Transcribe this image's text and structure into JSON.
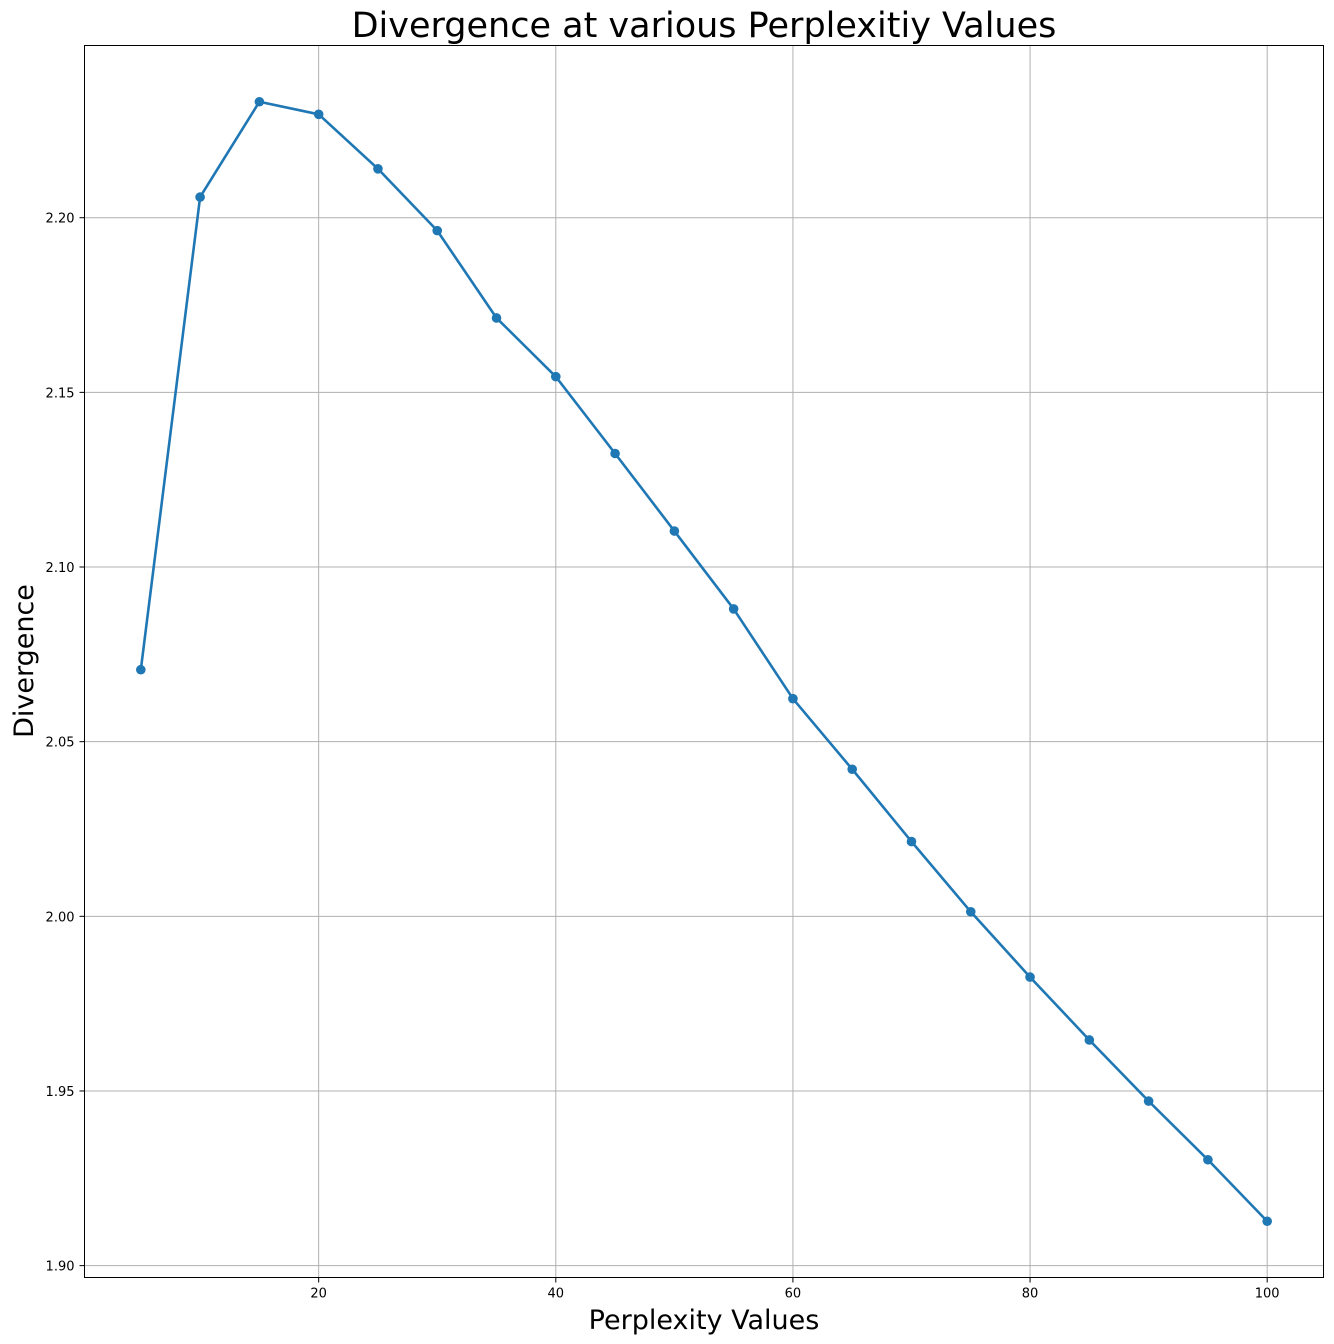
{
  "chart_data": {
    "type": "line",
    "title": "Divergence at various Perplexitiy Values",
    "xlabel": "Perplexity Values",
    "ylabel": "Divergence",
    "x": [
      5,
      10,
      15,
      20,
      25,
      30,
      35,
      40,
      45,
      50,
      55,
      60,
      65,
      70,
      75,
      80,
      85,
      90,
      95,
      100
    ],
    "series": [
      {
        "values": [
          2.0706,
          2.2059,
          2.2332,
          2.2296,
          2.214,
          2.1963,
          2.1713,
          2.1545,
          2.1325,
          2.1103,
          2.088,
          2.0623,
          2.0421,
          2.0214,
          2.0013,
          1.9826,
          1.9646,
          1.9471,
          1.9303,
          1.9127
        ],
        "color": "#1f77b4"
      }
    ],
    "xlim": [
      0.25,
      104.75
    ],
    "ylim": [
      1.8966,
      2.2493
    ],
    "xticks": [
      20,
      40,
      60,
      80,
      100
    ],
    "xtick_labels": [
      "20",
      "40",
      "60",
      "80",
      "100"
    ],
    "yticks": [
      1.9,
      1.95,
      2.0,
      2.05,
      2.1,
      2.15,
      2.2
    ],
    "ytick_labels": [
      "1.90",
      "1.95",
      "2.00",
      "2.05",
      "2.10",
      "2.15",
      "2.20"
    ],
    "grid": true,
    "marker": "circle"
  }
}
